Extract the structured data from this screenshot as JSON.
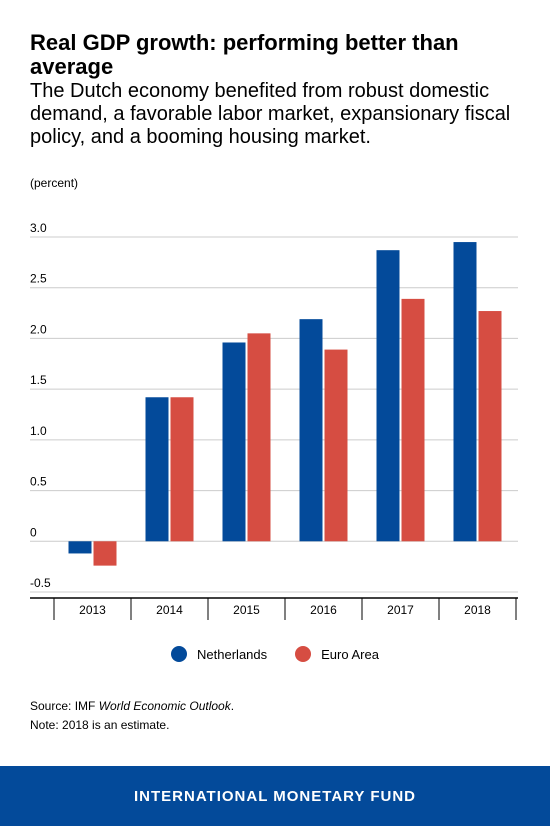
{
  "header": {
    "title": "Real GDP growth: performing better than average",
    "subtitle": "The Dutch economy benefited from robust domestic demand, a favorable labor market, expansionary fiscal policy, and a booming housing market.",
    "unit": "(percent)"
  },
  "chart_data": {
    "type": "bar",
    "categories": [
      "2013",
      "2014",
      "2015",
      "2016",
      "2017",
      "2018"
    ],
    "series": [
      {
        "name": "Netherlands",
        "color": "#034A9A",
        "values": [
          -0.12,
          1.42,
          1.96,
          2.19,
          2.87,
          2.95
        ]
      },
      {
        "name": "Euro Area",
        "color": "#D64D42",
        "values": [
          -0.24,
          1.42,
          2.05,
          1.89,
          2.39,
          2.27
        ]
      }
    ],
    "ylim": [
      -0.5,
      3.0
    ],
    "yticks": [
      -0.5,
      0,
      0.5,
      1.0,
      1.5,
      2.0,
      2.5,
      3.0
    ],
    "ytick_labels": [
      "-0.5",
      "0",
      "0.5",
      "1.0",
      "1.5",
      "2.0",
      "2.5",
      "3.0"
    ],
    "grid": true,
    "legend_position": "bottom"
  },
  "footnotes": {
    "source_prefix": "Source: IMF ",
    "source_title": "World Economic Outlook",
    "source_suffix": ".",
    "note": "Note: 2018 is an estimate."
  },
  "footer": {
    "text": "INTERNATIONAL MONETARY FUND",
    "bg_color": "#034A9A"
  }
}
